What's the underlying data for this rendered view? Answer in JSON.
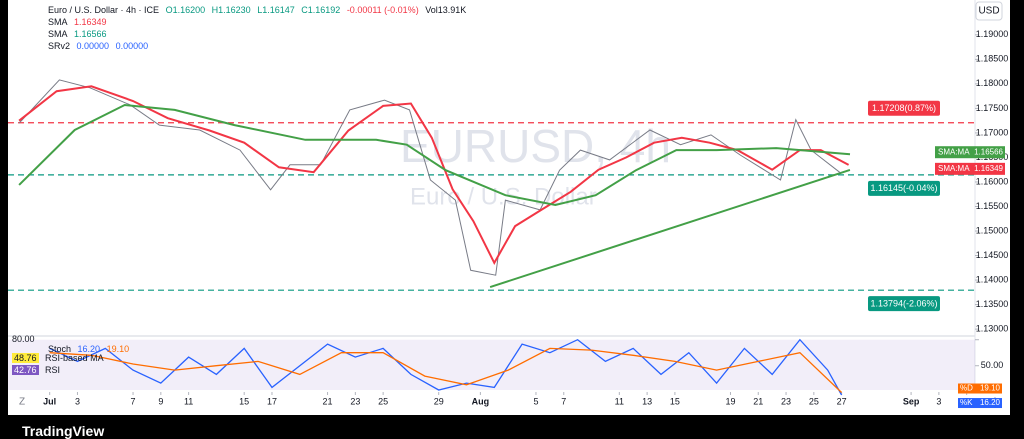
{
  "chart_data": [
    {
      "type": "line",
      "title": "Euro / U.S. Dollar · 4h · ICE",
      "ohlc": {
        "open": "O1.16200",
        "high": "H1.16230",
        "low": "L1.16147",
        "close": "C1.16192",
        "change": "-0.00011 (-0.01%)",
        "volume": "Vol13.91K"
      },
      "watermark": "EURUSD, 4h",
      "watermark_subtitle": "Euro / U.S. Dollar",
      "currency": "USD",
      "x_axis_buttons": [
        "Z",
        "A"
      ],
      "brand": "TradingView",
      "indicator_legend": {
        "name": "SRv2",
        "values": [
          "0.00000",
          "0.00000"
        ]
      },
      "xlim": [
        -2,
        67.6
      ],
      "xticks": [
        {
          "value": 1,
          "label": "Jul"
        },
        3,
        7,
        9,
        11,
        15,
        17,
        21,
        23,
        25,
        29,
        {
          "value": 32,
          "label": "Aug"
        },
        {
          "value": 36,
          "label": "5"
        },
        {
          "value": 38,
          "label": "7"
        },
        {
          "value": 42,
          "label": "11"
        },
        {
          "value": 44,
          "label": "13"
        },
        {
          "value": 46,
          "label": "15"
        },
        {
          "value": 50,
          "label": "19"
        },
        {
          "value": 52,
          "label": "21"
        },
        {
          "value": 54,
          "label": "23"
        },
        {
          "value": 56,
          "label": "25"
        },
        {
          "value": 58,
          "label": "27"
        },
        {
          "value": 63,
          "label": "Sep"
        },
        {
          "value": 65,
          "label": "3"
        },
        {
          "value": 67,
          "label": "5"
        }
      ],
      "ylim": [
        1.1288,
        1.1971
      ],
      "yticks": [
        {
          "value": 1.13,
          "label": "1.13000"
        },
        {
          "value": 1.135,
          "label": "1.13500"
        },
        {
          "value": 1.14,
          "label": "1.14000"
        },
        {
          "value": 1.145,
          "label": "1.14500"
        },
        {
          "value": 1.15,
          "label": "1.15000"
        },
        {
          "value": 1.155,
          "label": "1.15500"
        },
        {
          "value": 1.16,
          "label": "1.16000"
        },
        {
          "value": 1.165,
          "label": "1.16500"
        },
        {
          "value": 1.17,
          "label": "1.17000"
        },
        {
          "value": 1.175,
          "label": "1.17500"
        },
        {
          "value": 1.18,
          "label": "1.18000"
        },
        {
          "value": 1.185,
          "label": "1.18500"
        },
        {
          "value": 1.19,
          "label": "1.19000"
        }
      ],
      "series": [
        {
          "color": "#787b86",
          "width": 1,
          "x": [
            -1.2,
            1.7,
            3.9,
            6.8,
            8.9,
            11.8,
            14.7,
            16.9,
            18.3,
            20.5,
            22.6,
            25.1,
            26.9,
            28.4,
            30.2,
            31.3,
            33.1,
            33.8,
            36.3,
            37.7,
            39.2,
            41.3,
            44.2,
            46.4,
            48.6,
            50.7,
            53.6,
            54.7,
            55.8,
            57.9
          ],
          "values": [
            1.172,
            1.1808,
            1.1792,
            1.1757,
            1.1716,
            1.1706,
            1.1665,
            1.1584,
            1.1635,
            1.1635,
            1.1747,
            1.1767,
            1.1747,
            1.1604,
            1.1563,
            1.142,
            1.141,
            1.1563,
            1.1543,
            1.1624,
            1.1665,
            1.1645,
            1.1706,
            1.1676,
            1.1696,
            1.1655,
            1.1604,
            1.1727,
            1.1665,
            1.1619
          ]
        },
        {
          "name": "SMA",
          "color": "#f23645",
          "width": 2,
          "legend_value": 1.16349,
          "axis_tag": "SMA:MA",
          "x": [
            -1.2,
            1.5,
            4,
            7,
            9.5,
            12.5,
            15,
            17.5,
            20,
            22.5,
            25,
            27,
            28.5,
            30,
            31.5,
            33,
            34.5,
            36.5,
            38.5,
            40.5,
            42.5,
            44.5,
            46.5,
            48.5,
            50.5,
            53,
            55,
            56.5,
            58.5
          ],
          "values": [
            1.1725,
            1.1785,
            1.1795,
            1.1765,
            1.173,
            1.1705,
            1.168,
            1.163,
            1.162,
            1.1705,
            1.1755,
            1.176,
            1.169,
            1.1585,
            1.152,
            1.1435,
            1.151,
            1.1545,
            1.158,
            1.1625,
            1.165,
            1.168,
            1.169,
            1.168,
            1.1665,
            1.1625,
            1.1665,
            1.1665,
            1.16349
          ]
        },
        {
          "name": "SMA",
          "color": "#43a047",
          "width": 2,
          "legend_value": 1.16566,
          "axis_tag": "SMA:MA",
          "x": [
            -1.2,
            2.8,
            6.4,
            10,
            14.3,
            19.4,
            24.5,
            26.7,
            29.5,
            33.8,
            37.4,
            40.3,
            43.2,
            46.1,
            49,
            53.3,
            58.6
          ],
          "values": [
            1.1594,
            1.1706,
            1.1757,
            1.1747,
            1.1716,
            1.1686,
            1.1686,
            1.1676,
            1.1624,
            1.1573,
            1.1553,
            1.1573,
            1.1624,
            1.1665,
            1.1665,
            1.1669,
            1.16566
          ]
        }
      ],
      "levels": [
        {
          "value": 1.17208,
          "label": "1.17208(0.87%)",
          "color": "#f23645",
          "side": "above"
        },
        {
          "value": 1.16145,
          "label": "1.16145(-0.04%)",
          "color": "#089981",
          "side": "below"
        },
        {
          "value": 1.13794,
          "label": "1.13794(-2.06%)",
          "color": "#089981",
          "side": "below"
        }
      ],
      "trendline": {
        "x": [
          32.7,
          58.6
        ],
        "y": [
          1.13857,
          1.16245
        ],
        "color": "#43a047"
      }
    },
    {
      "type": "line",
      "title": "Stoch",
      "indicators": [
        {
          "value": "48.76",
          "name": "RSI-based MA"
        },
        {
          "value": "42.76",
          "name": "RSI"
        }
      ],
      "xlim": [
        -2,
        67.6
      ],
      "ylim": [
        22,
        82
      ],
      "yticks": [
        {
          "value": 80,
          "label": "80.00"
        },
        {
          "value": 50,
          "label": "50.00"
        }
      ],
      "band": [
        20,
        80
      ],
      "series": [
        {
          "name": "%K",
          "color": "#2962ff",
          "last_label": "16.20",
          "x": [
            1,
            3,
            5,
            7,
            9,
            11,
            13,
            15,
            17,
            19,
            21,
            23,
            25,
            27,
            29,
            31,
            33,
            35,
            37,
            39,
            41,
            43,
            45,
            47,
            49,
            51,
            53,
            55,
            57,
            58
          ],
          "values": [
            70,
            55,
            70,
            45,
            30,
            60,
            40,
            70,
            25,
            50,
            75,
            60,
            70,
            40,
            22,
            30,
            25,
            75,
            65,
            80,
            55,
            70,
            40,
            65,
            30,
            70,
            40,
            80,
            45,
            16.2
          ]
        },
        {
          "name": "%D",
          "color": "#ff6d00",
          "last_label": "19.10",
          "x": [
            1,
            4,
            7,
            10,
            13,
            16,
            19,
            22,
            25,
            28,
            31,
            34,
            37,
            40,
            43,
            46,
            49,
            52,
            55,
            58
          ],
          "values": [
            65,
            62,
            52,
            45,
            50,
            55,
            40,
            65,
            65,
            38,
            28,
            45,
            70,
            68,
            62,
            55,
            45,
            55,
            65,
            19.1
          ]
        }
      ]
    }
  ]
}
